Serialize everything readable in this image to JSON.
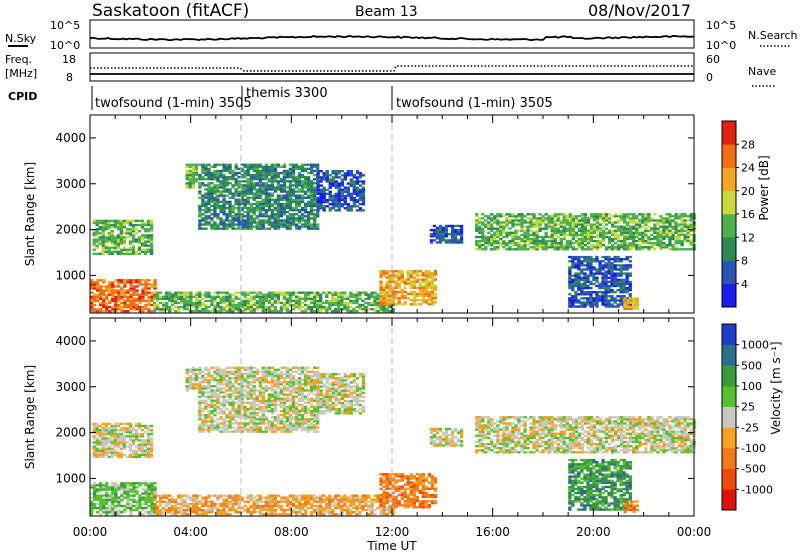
{
  "header": {
    "station": "Saskatoon (fitACF)",
    "beam": "Beam 13",
    "date": "08/Nov/2017"
  },
  "noise_panel": {
    "left_label": "N.Sky",
    "right_label": "N.Search",
    "left_ticks": [
      "10^5",
      "10^0"
    ],
    "right_ticks": [
      "10^5",
      "10^0"
    ]
  },
  "freq_panel": {
    "left_label_1": "Freq.",
    "left_label_2": "[MHz]",
    "left_ticks": [
      "18",
      "8"
    ],
    "right_label": "Nave",
    "right_ticks": [
      "60",
      "0"
    ]
  },
  "cpid_panel": {
    "label": "CPID",
    "segments": [
      {
        "name": "twofsound (1-min) 3505"
      },
      {
        "name": "themis 3300"
      },
      {
        "name": "twofsound (1-min) 3505"
      }
    ]
  },
  "colors": {
    "power": [
      "#1c1cf0",
      "#2a55b4",
      "#2e8a54",
      "#4caf50",
      "#c7d93b",
      "#f5a623",
      "#f07010",
      "#e02010"
    ],
    "velocity": [
      "#e01010",
      "#f04a10",
      "#f27a1a",
      "#f6a11f",
      "#c8c8c0",
      "#55c130",
      "#3c9a3c",
      "#2c6e8a",
      "#1c3ec8"
    ]
  },
  "chart_data": [
    {
      "type": "heatmap",
      "name": "power",
      "ylabel": "Slant Range [km]",
      "yticks": [
        "1000",
        "2000",
        "3000",
        "4000"
      ],
      "xticks": [
        "00:00",
        "04:00",
        "08:00",
        "12:00",
        "16:00",
        "20:00",
        "00:00"
      ],
      "colorbar": {
        "label": "Power [dB]",
        "ticks": [
          "4",
          "8",
          "12",
          "16",
          "20",
          "24",
          "28"
        ]
      },
      "ylim": [
        180,
        4500
      ],
      "xlim_hours": [
        0,
        24
      ],
      "regions": [
        {
          "t": [
            0.0,
            2.6
          ],
          "r": [
            200,
            900
          ],
          "level": 6
        },
        {
          "t": [
            0.1,
            2.5
          ],
          "r": [
            1450,
            2200
          ],
          "level": 3
        },
        {
          "t": [
            3.8,
            4.2
          ],
          "r": [
            2900,
            3400
          ],
          "level": 3
        },
        {
          "t": [
            4.3,
            9.0
          ],
          "r": [
            2000,
            3400
          ],
          "level": 2
        },
        {
          "t": [
            9.0,
            10.8
          ],
          "r": [
            2400,
            3300
          ],
          "level": 1
        },
        {
          "t": [
            2.5,
            12.0
          ],
          "r": [
            200,
            650
          ],
          "level": 3
        },
        {
          "t": [
            11.5,
            13.7
          ],
          "r": [
            350,
            1100
          ],
          "level": 5
        },
        {
          "t": [
            13.5,
            14.7
          ],
          "r": [
            1700,
            2100
          ],
          "level": 1
        },
        {
          "t": [
            15.3,
            24.0
          ],
          "r": [
            1550,
            2350
          ],
          "level": 3
        },
        {
          "t": [
            19.0,
            21.5
          ],
          "r": [
            300,
            1400
          ],
          "level": 1
        },
        {
          "t": [
            21.2,
            21.8
          ],
          "r": [
            250,
            500
          ],
          "level": 5
        }
      ]
    },
    {
      "type": "heatmap",
      "name": "velocity",
      "ylabel": "Slant Range [km]",
      "yticks": [
        "1000",
        "2000",
        "3000",
        "4000"
      ],
      "xticks": [
        "00:00",
        "04:00",
        "08:00",
        "12:00",
        "16:00",
        "20:00",
        "00:00"
      ],
      "xlabel": "Time UT",
      "colorbar": {
        "label": "Velocity [m s⁻¹]",
        "ticks": [
          "1000",
          "500",
          "100",
          "25",
          "-25",
          "-100",
          "-500",
          "-1000"
        ]
      },
      "ylim": [
        180,
        4500
      ],
      "xlim_hours": [
        0,
        24
      ],
      "regions": [
        {
          "t": [
            0.0,
            2.6
          ],
          "r": [
            200,
            900
          ],
          "level": 5
        },
        {
          "t": [
            0.1,
            2.5
          ],
          "r": [
            1450,
            2200
          ],
          "level": 4
        },
        {
          "t": [
            3.8,
            4.2
          ],
          "r": [
            2900,
            3400
          ],
          "level": 4
        },
        {
          "t": [
            4.3,
            9.0
          ],
          "r": [
            2000,
            3400
          ],
          "level": 4
        },
        {
          "t": [
            9.0,
            10.8
          ],
          "r": [
            2400,
            3300
          ],
          "level": 4
        },
        {
          "t": [
            2.5,
            12.0
          ],
          "r": [
            200,
            650
          ],
          "level": 3
        },
        {
          "t": [
            11.5,
            13.7
          ],
          "r": [
            350,
            1100
          ],
          "level": 2
        },
        {
          "t": [
            13.5,
            14.7
          ],
          "r": [
            1700,
            2100
          ],
          "level": 4
        },
        {
          "t": [
            15.3,
            24.0
          ],
          "r": [
            1550,
            2350
          ],
          "level": 4
        },
        {
          "t": [
            19.0,
            21.5
          ],
          "r": [
            300,
            1400
          ],
          "level": 6
        },
        {
          "t": [
            21.2,
            21.8
          ],
          "r": [
            250,
            500
          ],
          "level": 2
        }
      ]
    }
  ]
}
